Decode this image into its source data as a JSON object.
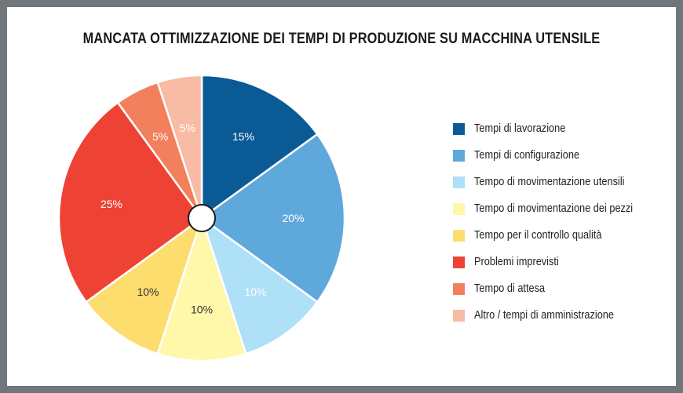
{
  "chart_data": {
    "type": "pie",
    "title": "MANCATA OTTIMIZZAZIONE DEI TEMPI DI PRODUZIONE SU MACCHINA UTENSILE",
    "legend_position": "right",
    "slices": [
      {
        "label": "Tempi di lavorazione",
        "value": 15,
        "value_label": "15%",
        "color": "#0a5a96",
        "label_color": "#ffffff"
      },
      {
        "label": "Tempi di configurazione",
        "value": 20,
        "value_label": "20%",
        "color": "#5ea8db",
        "label_color": "#ffffff"
      },
      {
        "label": "Tempo di movimentazione utensili",
        "value": 10,
        "value_label": "10%",
        "color": "#aee0f8",
        "label_color": "#ffffff"
      },
      {
        "label": "Tempo di movimentazione dei pezzi",
        "value": 10,
        "value_label": "10%",
        "color": "#fff7aa",
        "label_color": "#333333"
      },
      {
        "label": "Tempo per il controllo qualità",
        "value": 10,
        "value_label": "10%",
        "color": "#fcdd6e",
        "label_color": "#333333"
      },
      {
        "label": "Problemi imprevisti",
        "value": 25,
        "value_label": "25%",
        "color": "#ee4234",
        "label_color": "#ffffff"
      },
      {
        "label": "Tempo di attesa",
        "value": 5,
        "value_label": "5%",
        "color": "#f2805c",
        "label_color": "#ffffff"
      },
      {
        "label": "Altro / tempi di amministrazione",
        "value": 5,
        "value_label": "5%",
        "color": "#f8bba5",
        "label_color": "#ffffff"
      }
    ]
  }
}
